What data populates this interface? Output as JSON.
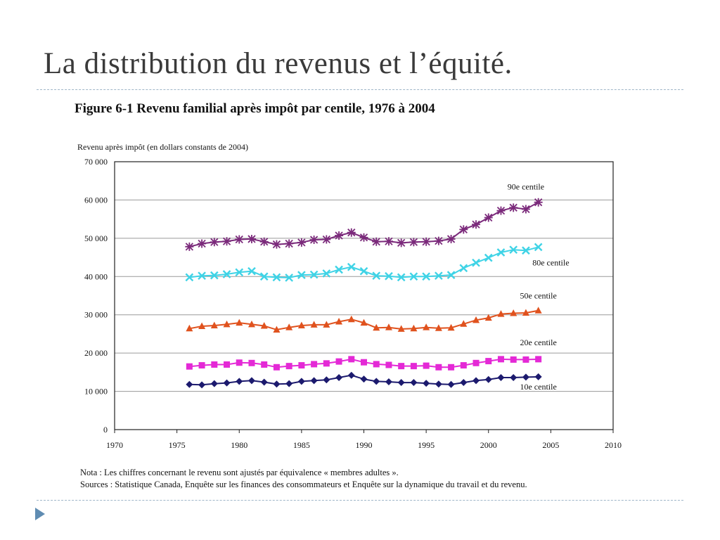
{
  "slide": {
    "title": "La distribution du revenus et l’équité."
  },
  "figure": {
    "title": "Figure 6-1  Revenu familial après impôt par centile, 1976 à 2004",
    "note": "Nota : Les chiffres concernant le revenu sont ajustés par équivalence « membres adultes ».",
    "sources": "Sources : Statistique Canada, Enquête sur les finances des consommateurs et Enquête sur la dynamique du travail et du revenu."
  },
  "chart_data": {
    "type": "line",
    "title": "Figure 6-1  Revenu familial après impôt par centile, 1976 à 2004",
    "ylabel": "Revenu après impôt (en dollars constants de 2004)",
    "xlabel": "",
    "xlim": [
      1970,
      2010
    ],
    "ylim": [
      0,
      70000
    ],
    "x_ticks": [
      1970,
      1975,
      1980,
      1985,
      1990,
      1995,
      2000,
      2005,
      2010
    ],
    "y_ticks": [
      0,
      10000,
      20000,
      30000,
      40000,
      50000,
      60000,
      70000
    ],
    "y_tick_labels": [
      "0",
      "10 000",
      "20 000",
      "30 000",
      "40 000",
      "50 000",
      "60 000",
      "70 000"
    ],
    "grid": "horizontal",
    "x": [
      1976,
      1977,
      1978,
      1979,
      1980,
      1981,
      1982,
      1983,
      1984,
      1985,
      1986,
      1987,
      1988,
      1989,
      1990,
      1991,
      1992,
      1993,
      1994,
      1995,
      1996,
      1997,
      1998,
      1999,
      2000,
      2001,
      2002,
      2003,
      2004
    ],
    "series": [
      {
        "name": "90e centile",
        "marker": "asterisk",
        "color": "#7b2a7b",
        "values": [
          47800,
          48600,
          49000,
          49200,
          49700,
          49800,
          49100,
          48400,
          48600,
          48900,
          49600,
          49700,
          50700,
          51500,
          50200,
          49100,
          49200,
          48800,
          49000,
          49100,
          49300,
          49800,
          52300,
          53600,
          55400,
          57200,
          58000,
          57600,
          59400
        ]
      },
      {
        "name": "80e centile",
        "marker": "cross",
        "color": "#3fd3e6",
        "values": [
          39800,
          40200,
          40300,
          40600,
          41100,
          41400,
          40000,
          39800,
          39700,
          40400,
          40500,
          40800,
          41800,
          42500,
          41400,
          40200,
          40100,
          39800,
          40000,
          40000,
          40200,
          40400,
          42200,
          43600,
          44900,
          46300,
          47000,
          46800,
          47700
        ]
      },
      {
        "name": "50e centile",
        "marker": "triangle",
        "color": "#e0521e",
        "values": [
          26400,
          27000,
          27200,
          27500,
          27900,
          27500,
          27100,
          26100,
          26700,
          27200,
          27400,
          27400,
          28200,
          28800,
          27900,
          26600,
          26700,
          26300,
          26400,
          26700,
          26500,
          26600,
          27600,
          28600,
          29200,
          30200,
          30400,
          30500,
          31100
        ]
      },
      {
        "name": "20e centile",
        "marker": "square",
        "color": "#e429d6",
        "values": [
          16500,
          16800,
          17000,
          17000,
          17500,
          17400,
          17000,
          16300,
          16600,
          16800,
          17100,
          17300,
          17800,
          18400,
          17600,
          17100,
          16900,
          16600,
          16600,
          16700,
          16300,
          16300,
          16800,
          17400,
          17900,
          18400,
          18300,
          18300,
          18400
        ]
      },
      {
        "name": "10e centile",
        "marker": "diamond",
        "color": "#1c1a6e",
        "values": [
          11800,
          11700,
          12000,
          12200,
          12600,
          12800,
          12400,
          11900,
          12000,
          12600,
          12800,
          13000,
          13600,
          14200,
          13200,
          12600,
          12500,
          12300,
          12300,
          12100,
          11900,
          11800,
          12300,
          12800,
          13100,
          13600,
          13600,
          13700,
          13800
        ]
      }
    ]
  }
}
